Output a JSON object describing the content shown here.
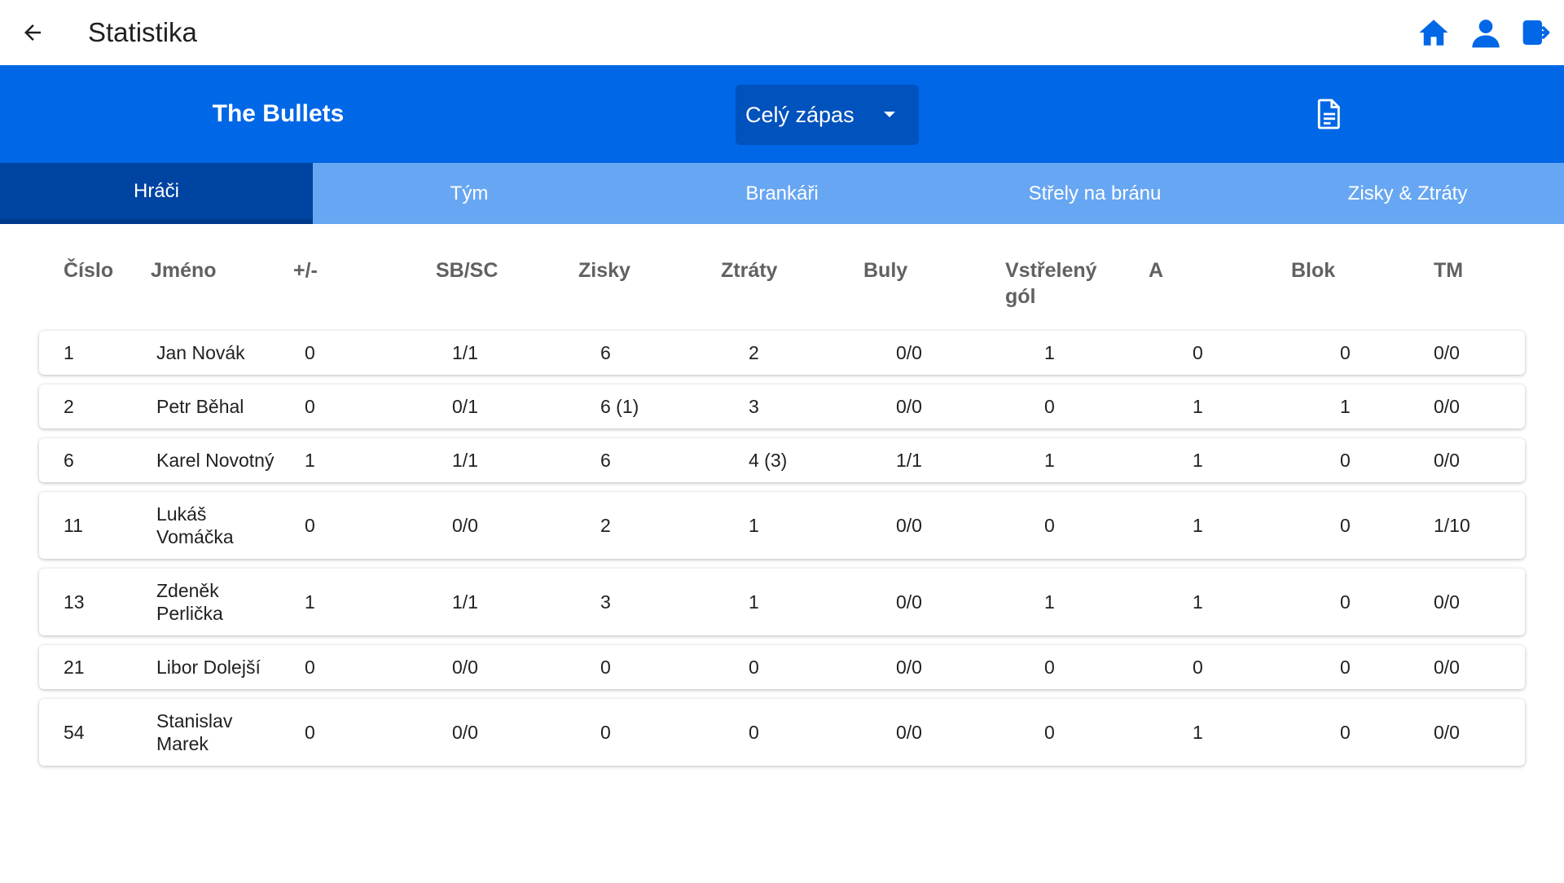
{
  "appbar": {
    "title": "Statistika"
  },
  "team_bar": {
    "team_name": "The Bullets",
    "period": "Celý zápas"
  },
  "tabs": [
    "Hráči",
    "Tým",
    "Brankáři",
    "Střely na bránu",
    "Zisky & Ztráty"
  ],
  "table": {
    "headers": [
      "Číslo",
      "Jméno",
      "+/-",
      "SB/SC",
      "Zisky",
      "Ztráty",
      "Buly",
      "Vstřelený gól",
      "A",
      "Blok",
      "TM"
    ],
    "rows": [
      [
        "1",
        "Jan Novák",
        "0",
        "1/1",
        "6",
        "2",
        "0/0",
        "1",
        "0",
        "0",
        "0/0"
      ],
      [
        "2",
        "Petr Běhal",
        "0",
        "0/1",
        "6 (1)",
        "3",
        "0/0",
        "0",
        "1",
        "1",
        "0/0"
      ],
      [
        "6",
        "Karel Novotný",
        "1",
        "1/1",
        "6",
        "4 (3)",
        "1/1",
        "1",
        "1",
        "0",
        "0/0"
      ],
      [
        "11",
        "Lukáš Vomáčka",
        "0",
        "0/0",
        "2",
        "1",
        "0/0",
        "0",
        "1",
        "0",
        "1/10"
      ],
      [
        "13",
        "Zdeněk Perlička",
        "1",
        "1/1",
        "3",
        "1",
        "0/0",
        "1",
        "1",
        "0",
        "0/0"
      ],
      [
        "21",
        "Libor Dolejší",
        "0",
        "0/0",
        "0",
        "0",
        "0/0",
        "0",
        "0",
        "0",
        "0/0"
      ],
      [
        "54",
        "Stanislav Marek",
        "0",
        "0/0",
        "0",
        "0",
        "0/0",
        "0",
        "1",
        "0",
        "0/0"
      ]
    ]
  },
  "colors": {
    "primary": "#0067e6",
    "tab_bg": "#67a6f2",
    "tab_active": "#0044a1"
  },
  "icons": {
    "back": "arrow-back-icon",
    "home": "home-icon",
    "profile": "person-icon",
    "logout": "logout-icon",
    "export": "document-icon"
  }
}
